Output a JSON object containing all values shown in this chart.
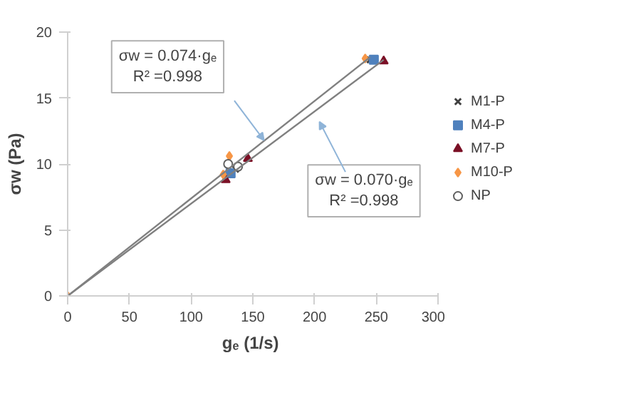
{
  "chart_data": {
    "type": "scatter",
    "xlabel": "gₑ  (1/s)",
    "ylabel": "σw (Pa)",
    "xlim": [
      0,
      300
    ],
    "xticks": [
      0,
      50,
      100,
      150,
      200,
      250,
      300
    ],
    "ylim": [
      0,
      20
    ],
    "yticks": [
      0,
      5,
      10,
      15,
      20
    ],
    "grid": false,
    "legend": "right",
    "series": [
      {
        "name": "M1-P",
        "color": "#404040",
        "marker": "cross",
        "x": [
          136,
          245
        ],
        "values": [
          9.6,
          17.9
        ]
      },
      {
        "name": "M4-P",
        "color": "#4f81bd",
        "marker": "square",
        "x": [
          132,
          248
        ],
        "values": [
          9.3,
          17.9
        ]
      },
      {
        "name": "M7-P",
        "color": "#7b1026",
        "marker": "triangle",
        "x": [
          128,
          146,
          256
        ],
        "values": [
          8.8,
          10.4,
          17.8
        ]
      },
      {
        "name": "M10-P",
        "color": "#f79646",
        "marker": "diamond",
        "x": [
          0,
          126,
          131,
          241
        ],
        "values": [
          0,
          9.2,
          10.6,
          18.0
        ]
      },
      {
        "name": "NP",
        "color": "#606060",
        "marker": "circle",
        "x": [
          130,
          138
        ],
        "values": [
          10.0,
          9.8
        ]
      },
      {
        "type": "line",
        "color": "#808080",
        "x": [
          0,
          245
        ],
        "values": [
          0,
          18.1
        ]
      },
      {
        "type": "line",
        "color": "#808080",
        "x": [
          0,
          256
        ],
        "values": [
          0,
          17.9
        ]
      }
    ],
    "annotations": [
      "σw = 0.074·gₑ\nR² =0.998",
      "σw = 0.070·gₑ\nR² =0.998"
    ]
  }
}
